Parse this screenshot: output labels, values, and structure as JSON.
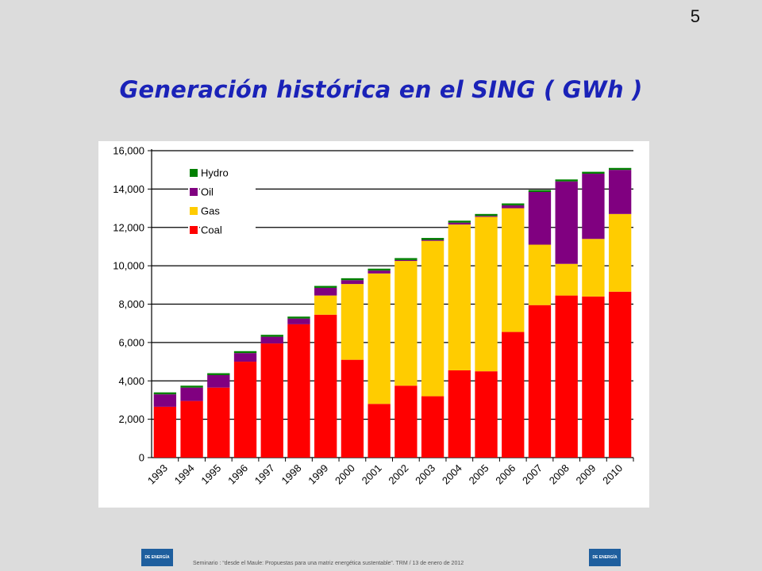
{
  "slide": {
    "page_number": "5",
    "title": "Generación histórica en el SING ( GWh )",
    "footer": "Seminario : “desde el Maule: Propuestas para una matriz energética sustentable”.  TRM  /  13 de enero de 2012",
    "logo_text": "DE ENERGÍA"
  },
  "chart_data": {
    "type": "bar",
    "stacked": true,
    "title": "",
    "xlabel": "",
    "ylabel": "",
    "ylim": [
      0,
      16000
    ],
    "yticks": [
      0,
      2000,
      4000,
      6000,
      8000,
      10000,
      12000,
      14000,
      16000
    ],
    "ytick_labels": [
      "0",
      "2,000",
      "4,000",
      "6,000",
      "8,000",
      "10,000",
      "12,000",
      "14,000",
      "16,000"
    ],
    "grid": "horizontal",
    "legend_position": "top-left",
    "categories": [
      "1993",
      "1994",
      "1995",
      "1996",
      "1997",
      "1998",
      "1999",
      "2000",
      "2001",
      "2002",
      "2003",
      "2004",
      "2005",
      "2006",
      "2007",
      "2008",
      "2009",
      "2010"
    ],
    "series": [
      {
        "name": "Coal",
        "color": "#ff0000",
        "values": [
          2650,
          2950,
          3650,
          5000,
          5950,
          6950,
          7450,
          5100,
          2800,
          3750,
          3200,
          4550,
          4500,
          6550,
          7950,
          8450,
          8400,
          8650
        ]
      },
      {
        "name": "Gas",
        "color": "#ffcc00",
        "values": [
          0,
          0,
          0,
          0,
          0,
          0,
          1000,
          3950,
          6800,
          6500,
          8100,
          7600,
          8050,
          6450,
          3150,
          1650,
          3000,
          4050
        ]
      },
      {
        "name": "Oil",
        "color": "#800080",
        "values": [
          650,
          700,
          650,
          450,
          350,
          300,
          400,
          200,
          150,
          50,
          50,
          100,
          50,
          150,
          2750,
          4300,
          3400,
          2300
        ]
      },
      {
        "name": "Hydro",
        "color": "#008000",
        "values": [
          100,
          100,
          100,
          100,
          100,
          100,
          100,
          100,
          100,
          100,
          100,
          100,
          100,
          100,
          100,
          100,
          100,
          100
        ]
      }
    ]
  }
}
